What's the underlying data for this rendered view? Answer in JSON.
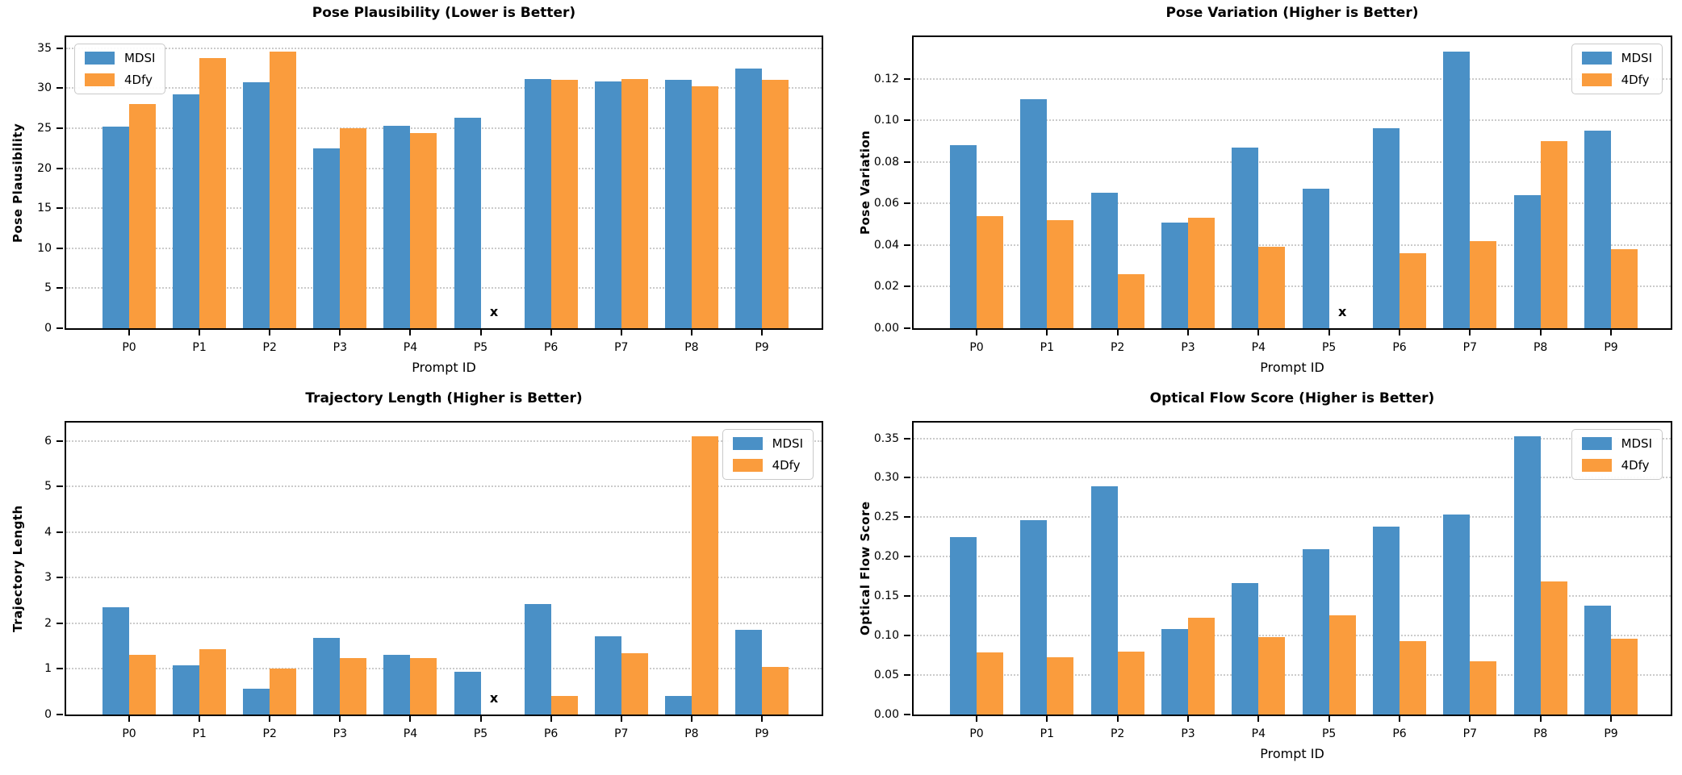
{
  "figure": {
    "background": "#ffffff",
    "colors": {
      "mdsi": "#4a90c6",
      "fourdfy": "#fa9c3d",
      "marker": "#000000",
      "grid": "#cbcbcb"
    },
    "missing_symbol": "x"
  },
  "chart_data": [
    {
      "type": "bar",
      "title": "Pose Plausibility (Lower is Better)",
      "ylabel": "Pose Plausibility",
      "xlabel": "Prompt ID",
      "categories": [
        "P0",
        "P1",
        "P2",
        "P3",
        "P4",
        "P5",
        "P6",
        "P7",
        "P8",
        "P9"
      ],
      "series": [
        {
          "name": "MDSI",
          "values": [
            25.2,
            29.2,
            30.8,
            22.5,
            25.3,
            26.3,
            31.2,
            30.9,
            31.1,
            32.5
          ]
        },
        {
          "name": "4Dfy",
          "values": [
            28.0,
            33.8,
            34.6,
            25.0,
            24.4,
            null,
            31.1,
            31.2,
            30.3,
            31.1
          ]
        }
      ],
      "missing_marker": {
        "series": "4Dfy",
        "category": "P5",
        "symbol": "x"
      },
      "ylim": [
        0,
        36.4
      ],
      "yticks": [
        0,
        5,
        10,
        15,
        20,
        25,
        30,
        35
      ],
      "ytick_labels": [
        "0",
        "5",
        "10",
        "15",
        "20",
        "25",
        "30",
        "35"
      ],
      "legend_position": "top-left",
      "grid": "dotted-horizontal"
    },
    {
      "type": "bar",
      "title": "Pose Variation (Higher is Better)",
      "ylabel": "Pose Variation",
      "xlabel": "Prompt ID",
      "categories": [
        "P0",
        "P1",
        "P2",
        "P3",
        "P4",
        "P5",
        "P6",
        "P7",
        "P8",
        "P9"
      ],
      "series": [
        {
          "name": "MDSI",
          "values": [
            0.088,
            0.11,
            0.065,
            0.051,
            0.087,
            0.067,
            0.096,
            0.133,
            0.064,
            0.095
          ]
        },
        {
          "name": "4Dfy",
          "values": [
            0.054,
            0.052,
            0.026,
            0.053,
            0.039,
            null,
            0.036,
            0.042,
            0.09,
            0.038
          ]
        }
      ],
      "missing_marker": {
        "series": "4Dfy",
        "category": "P5",
        "symbol": "x"
      },
      "ylim": [
        0,
        0.14
      ],
      "yticks": [
        0,
        0.02,
        0.04,
        0.06,
        0.08,
        0.1,
        0.12
      ],
      "ytick_labels": [
        "0.00",
        "0.02",
        "0.04",
        "0.06",
        "0.08",
        "0.10",
        "0.12"
      ],
      "legend_position": "top-right",
      "grid": "dotted-horizontal"
    },
    {
      "type": "bar",
      "title": "Trajectory Length (Higher is Better)",
      "ylabel": "Trajectory Length",
      "xlabel": "",
      "categories": [
        "P0",
        "P1",
        "P2",
        "P3",
        "P4",
        "P5",
        "P6",
        "P7",
        "P8",
        "P9"
      ],
      "series": [
        {
          "name": "MDSI",
          "values": [
            2.36,
            1.07,
            0.56,
            1.68,
            1.31,
            0.93,
            2.43,
            1.71,
            0.41,
            1.85
          ]
        },
        {
          "name": "4Dfy",
          "values": [
            1.31,
            1.43,
            1.0,
            1.24,
            1.24,
            null,
            0.4,
            1.34,
            6.1,
            1.04
          ]
        }
      ],
      "missing_marker": {
        "series": "4Dfy",
        "category": "P5",
        "symbol": "x"
      },
      "ylim": [
        0,
        6.4
      ],
      "yticks": [
        0,
        1,
        2,
        3,
        4,
        5,
        6
      ],
      "ytick_labels": [
        "0",
        "1",
        "2",
        "3",
        "4",
        "5",
        "6"
      ],
      "legend_position": "top-right",
      "grid": "dotted-horizontal"
    },
    {
      "type": "bar",
      "title": "Optical Flow Score (Higher is Better)",
      "ylabel": "Optical Flow Score",
      "xlabel": "Prompt ID",
      "categories": [
        "P0",
        "P1",
        "P2",
        "P3",
        "P4",
        "P5",
        "P6",
        "P7",
        "P8",
        "P9"
      ],
      "series": [
        {
          "name": "MDSI",
          "values": [
            0.225,
            0.246,
            0.289,
            0.108,
            0.167,
            0.21,
            0.238,
            0.253,
            0.353,
            0.138
          ]
        },
        {
          "name": "4Dfy",
          "values": [
            0.079,
            0.073,
            0.08,
            0.123,
            0.098,
            0.126,
            0.093,
            0.067,
            0.169,
            0.096
          ]
        }
      ],
      "missing_marker": null,
      "ylim": [
        0,
        0.37
      ],
      "yticks": [
        0,
        0.05,
        0.1,
        0.15,
        0.2,
        0.25,
        0.3,
        0.35
      ],
      "ytick_labels": [
        "0.00",
        "0.05",
        "0.10",
        "0.15",
        "0.20",
        "0.25",
        "0.30",
        "0.35"
      ],
      "legend_position": "top-right",
      "grid": "dotted-horizontal"
    }
  ]
}
